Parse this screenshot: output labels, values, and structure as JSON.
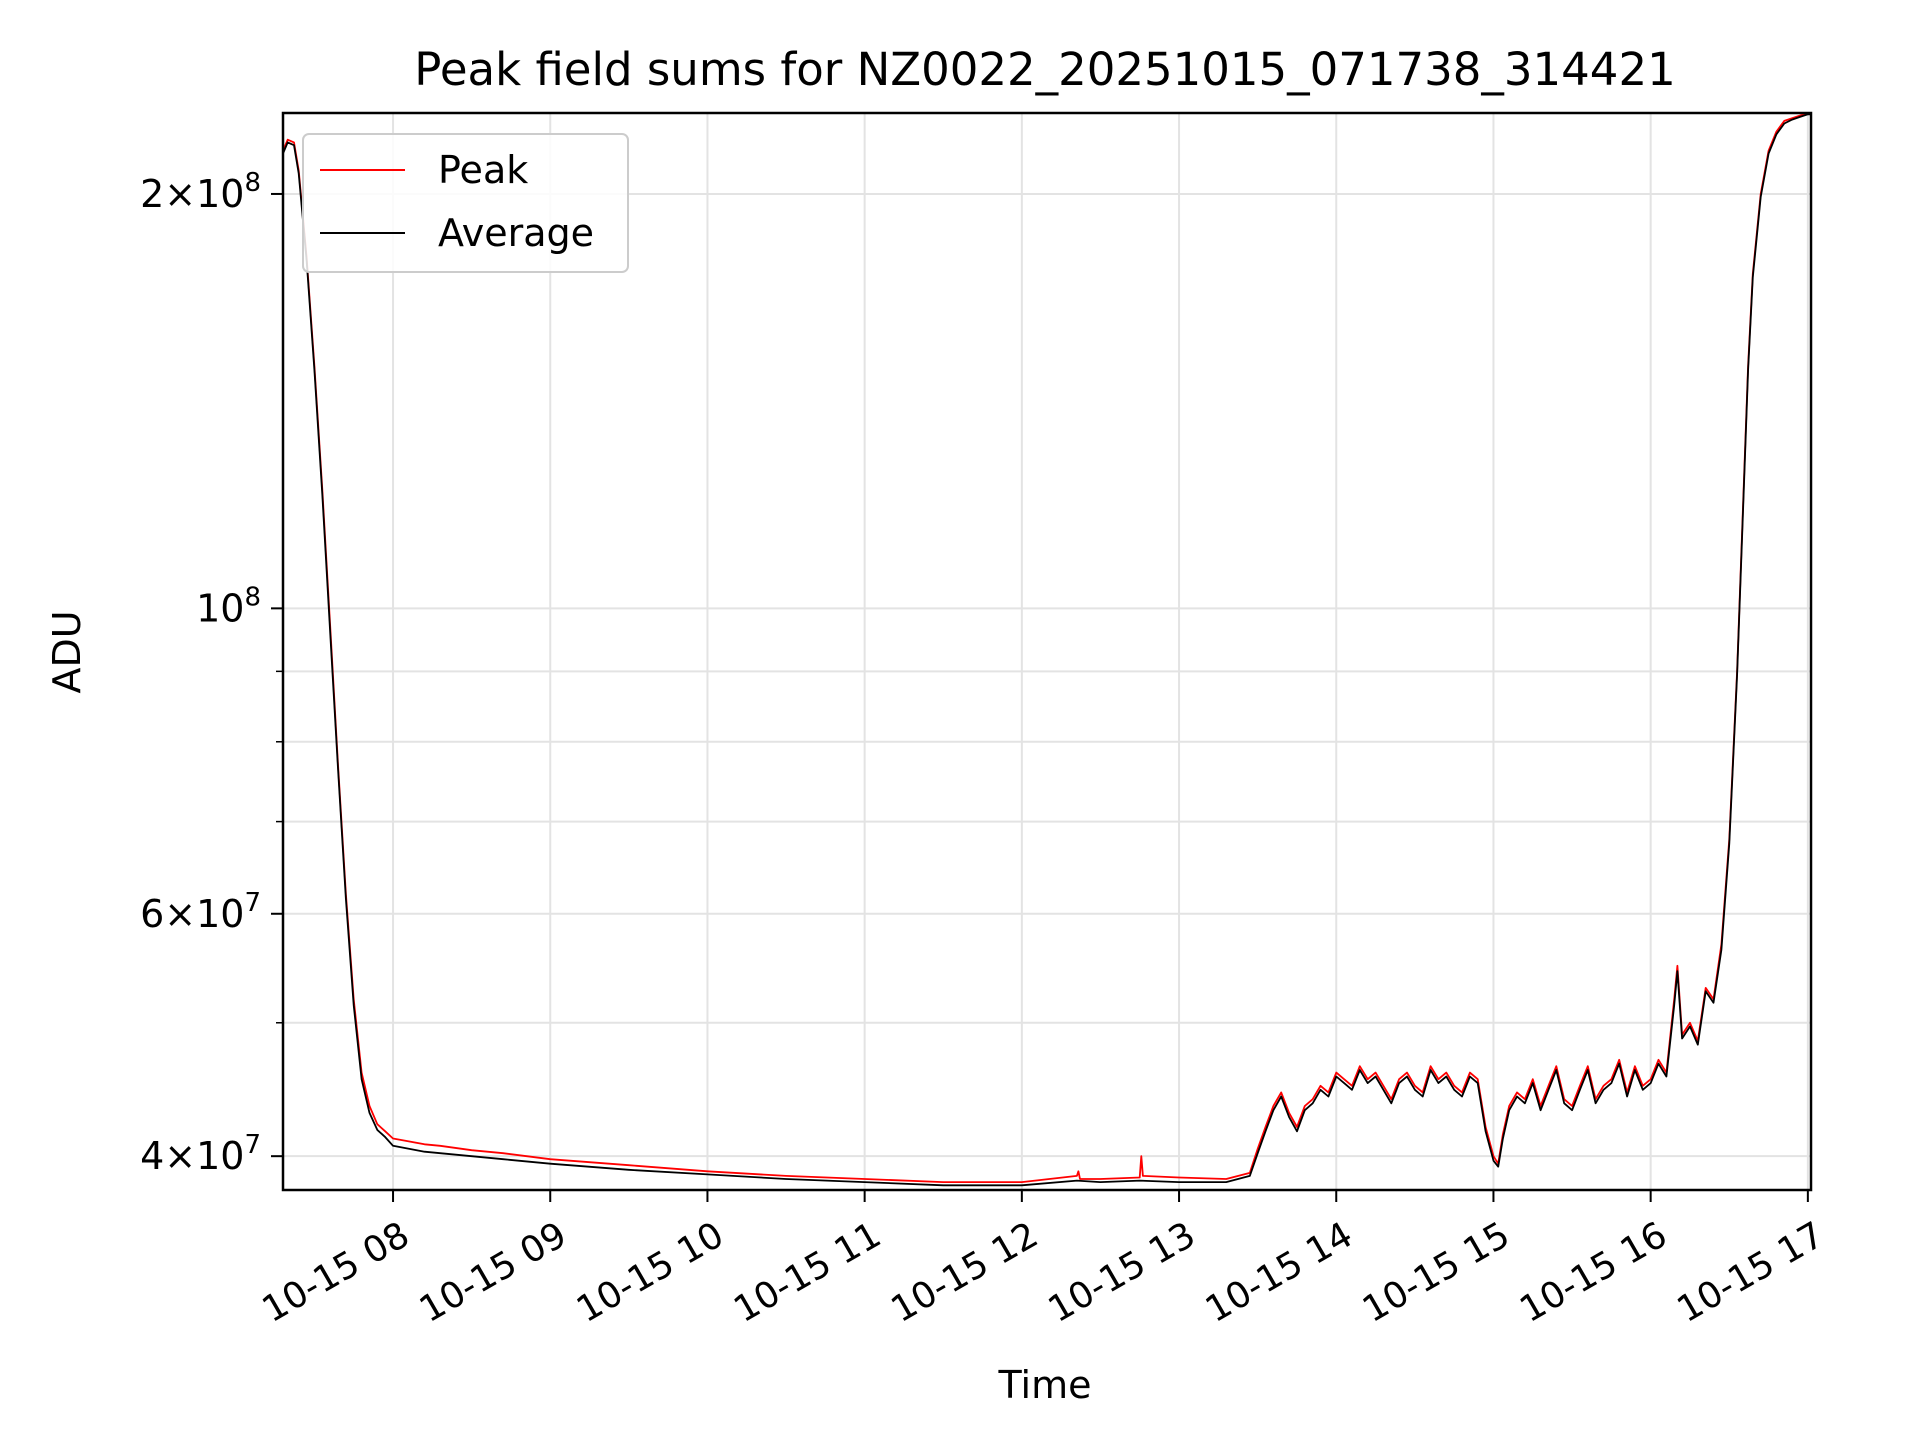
{
  "chart_data": {
    "type": "line",
    "title": "Peak field sums for NZ0022_20251015_071738_314421",
    "xlabel": "Time",
    "ylabel": "ADU",
    "yscale": "log",
    "xlim_hours": [
      7.3,
      17.02
    ],
    "ylim": [
      37800000,
      229000000
    ],
    "grid": true,
    "legend_position": "upper-left",
    "x_ticks": [
      {
        "value": 8,
        "label": "10-15 08"
      },
      {
        "value": 9,
        "label": "10-15 09"
      },
      {
        "value": 10,
        "label": "10-15 10"
      },
      {
        "value": 11,
        "label": "10-15 11"
      },
      {
        "value": 12,
        "label": "10-15 12"
      },
      {
        "value": 13,
        "label": "10-15 13"
      },
      {
        "value": 14,
        "label": "10-15 14"
      },
      {
        "value": 15,
        "label": "10-15 15"
      },
      {
        "value": 16,
        "label": "10-15 16"
      },
      {
        "value": 17,
        "label": "10-15 17"
      }
    ],
    "y_major_ticks": [
      {
        "value": 40000000,
        "mant": "4",
        "exp": "7"
      },
      {
        "value": 60000000,
        "mant": "6",
        "exp": "7"
      },
      {
        "value": 100000000,
        "mant": "",
        "exp": "8"
      },
      {
        "value": 200000000,
        "mant": "2",
        "exp": "8"
      }
    ],
    "y_minor_ticks": [
      50000000,
      70000000,
      80000000,
      90000000
    ],
    "series": [
      {
        "name": "Peak",
        "color": "#ff0000",
        "x": [
          7.3,
          7.33,
          7.37,
          7.4,
          7.45,
          7.5,
          7.55,
          7.6,
          7.65,
          7.7,
          7.75,
          7.8,
          7.85,
          7.9,
          7.95,
          8.0,
          8.1,
          8.2,
          8.3,
          8.5,
          8.7,
          9.0,
          9.5,
          10.0,
          10.5,
          11.0,
          11.5,
          12.0,
          12.35,
          12.36,
          12.37,
          12.5,
          12.75,
          12.76,
          12.77,
          13.0,
          13.3,
          13.45,
          13.5,
          13.55,
          13.6,
          13.65,
          13.7,
          13.75,
          13.8,
          13.85,
          13.9,
          13.95,
          14.0,
          14.05,
          14.1,
          14.15,
          14.2,
          14.25,
          14.3,
          14.35,
          14.4,
          14.45,
          14.5,
          14.55,
          14.6,
          14.65,
          14.7,
          14.75,
          14.8,
          14.85,
          14.9,
          14.95,
          15.0,
          15.03,
          15.06,
          15.1,
          15.15,
          15.2,
          15.25,
          15.3,
          15.35,
          15.4,
          15.45,
          15.5,
          15.55,
          15.6,
          15.65,
          15.7,
          15.75,
          15.8,
          15.85,
          15.9,
          15.95,
          16.0,
          16.05,
          16.1,
          16.15,
          16.17,
          16.2,
          16.25,
          16.3,
          16.35,
          16.4,
          16.45,
          16.5,
          16.55,
          16.6,
          16.62,
          16.65,
          16.7,
          16.75,
          16.8,
          16.85,
          16.9,
          16.95,
          17.0,
          17.02
        ],
        "values": [
          215000000,
          219000000,
          218000000,
          208000000,
          180000000,
          150000000,
          122000000,
          97000000,
          77000000,
          62000000,
          52000000,
          46000000,
          43500000,
          42200000,
          41700000,
          41200000,
          41000000,
          40800000,
          40700000,
          40400000,
          40200000,
          39800000,
          39400000,
          39000000,
          38700000,
          38500000,
          38300000,
          38300000,
          38700000,
          39000000,
          38500000,
          38500000,
          38600000,
          40000000,
          38700000,
          38600000,
          38500000,
          38900000,
          40500000,
          42000000,
          43500000,
          44500000,
          43000000,
          42000000,
          43500000,
          44000000,
          45000000,
          44500000,
          46000000,
          45500000,
          45000000,
          46500000,
          45500000,
          46000000,
          45000000,
          44000000,
          45500000,
          46000000,
          45000000,
          44500000,
          46500000,
          45500000,
          46000000,
          45000000,
          44500000,
          46000000,
          45500000,
          42000000,
          40000000,
          39500000,
          41500000,
          43500000,
          44500000,
          44000000,
          45500000,
          43500000,
          45000000,
          46500000,
          44000000,
          43500000,
          45000000,
          46500000,
          44000000,
          45000000,
          45500000,
          47000000,
          44500000,
          46500000,
          45000000,
          45500000,
          47000000,
          46000000,
          52000000,
          55000000,
          49000000,
          50000000,
          48500000,
          53000000,
          52000000,
          57000000,
          68000000,
          90000000,
          130000000,
          150000000,
          175000000,
          200000000,
          215000000,
          222000000,
          226000000,
          227000000,
          228000000,
          229000000,
          229000000
        ]
      },
      {
        "name": "Average",
        "color": "#000000",
        "x": [
          7.3,
          7.33,
          7.37,
          7.4,
          7.45,
          7.5,
          7.55,
          7.6,
          7.65,
          7.7,
          7.75,
          7.8,
          7.85,
          7.9,
          7.95,
          8.0,
          8.1,
          8.2,
          8.3,
          8.5,
          8.7,
          9.0,
          9.5,
          10.0,
          10.5,
          11.0,
          11.5,
          12.0,
          12.35,
          12.5,
          12.75,
          13.0,
          13.3,
          13.45,
          13.5,
          13.55,
          13.6,
          13.65,
          13.7,
          13.75,
          13.8,
          13.85,
          13.9,
          13.95,
          14.0,
          14.05,
          14.1,
          14.15,
          14.2,
          14.25,
          14.3,
          14.35,
          14.4,
          14.45,
          14.5,
          14.55,
          14.6,
          14.65,
          14.7,
          14.75,
          14.8,
          14.85,
          14.9,
          14.95,
          15.0,
          15.03,
          15.06,
          15.1,
          15.15,
          15.2,
          15.25,
          15.3,
          15.35,
          15.4,
          15.45,
          15.5,
          15.55,
          15.6,
          15.65,
          15.7,
          15.75,
          15.8,
          15.85,
          15.9,
          15.95,
          16.0,
          16.05,
          16.1,
          16.15,
          16.17,
          16.2,
          16.25,
          16.3,
          16.35,
          16.4,
          16.45,
          16.5,
          16.55,
          16.6,
          16.62,
          16.65,
          16.7,
          16.75,
          16.8,
          16.85,
          16.9,
          16.95,
          17.0,
          17.02
        ],
        "values": [
          214000000,
          218000000,
          217000000,
          207000000,
          179000000,
          149000000,
          121000000,
          96000000,
          76500000,
          61500000,
          51500000,
          45500000,
          43000000,
          41800000,
          41300000,
          40700000,
          40500000,
          40300000,
          40200000,
          40000000,
          39800000,
          39500000,
          39100000,
          38800000,
          38500000,
          38300000,
          38100000,
          38100000,
          38400000,
          38300000,
          38400000,
          38300000,
          38300000,
          38700000,
          40200000,
          41700000,
          43200000,
          44200000,
          42700000,
          41700000,
          43200000,
          43700000,
          44700000,
          44200000,
          45700000,
          45200000,
          44700000,
          46200000,
          45200000,
          45700000,
          44700000,
          43700000,
          45200000,
          45700000,
          44700000,
          44200000,
          46200000,
          45200000,
          45700000,
          44700000,
          44200000,
          45700000,
          45200000,
          41700000,
          39700000,
          39300000,
          41200000,
          43200000,
          44200000,
          43700000,
          45200000,
          43200000,
          44700000,
          46200000,
          43700000,
          43200000,
          44700000,
          46200000,
          43700000,
          44700000,
          45200000,
          46700000,
          44200000,
          46200000,
          44700000,
          45200000,
          46700000,
          45700000,
          51500000,
          54500000,
          48700000,
          49700000,
          48200000,
          52700000,
          51700000,
          56500000,
          67500000,
          89500000,
          129000000,
          149000000,
          174000000,
          199000000,
          214000000,
          221000000,
          225000000,
          226500000,
          227500000,
          228500000,
          228500000
        ]
      }
    ]
  }
}
